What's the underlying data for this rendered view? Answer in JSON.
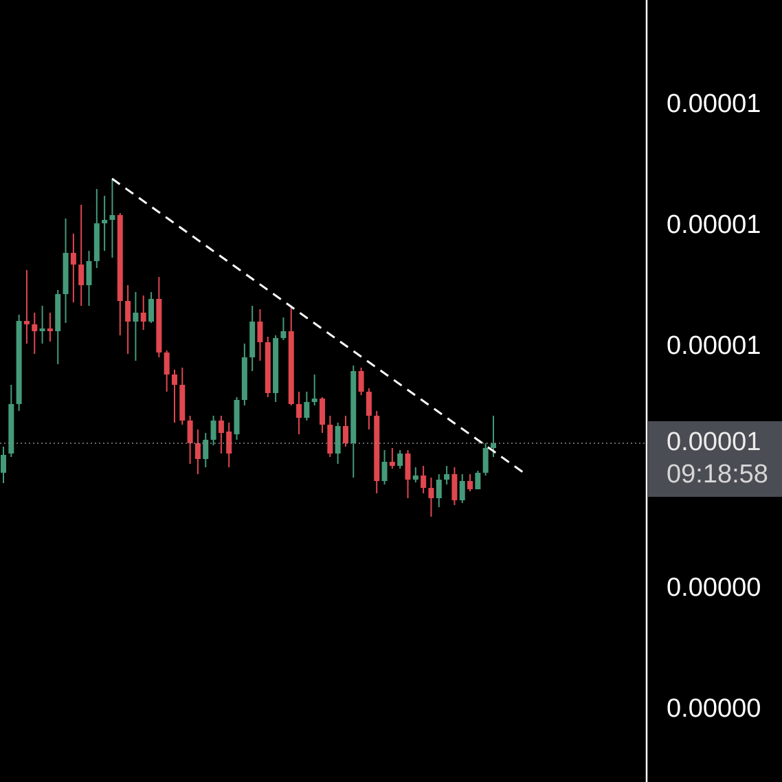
{
  "chart_data": {
    "type": "candlestick",
    "categories": [
      null,
      null,
      null,
      null,
      null,
      null,
      null,
      null,
      null,
      null,
      null,
      null,
      null,
      null,
      null,
      null,
      null,
      null,
      null,
      null,
      null,
      null,
      null,
      null,
      null,
      null,
      null,
      null,
      null,
      null,
      null,
      null,
      null,
      null,
      null,
      null,
      null,
      null,
      null,
      null,
      null,
      null,
      null,
      null,
      null,
      null,
      null,
      null,
      null,
      null,
      null,
      null,
      null,
      null,
      null,
      null,
      null,
      null,
      null,
      null,
      null,
      null,
      null,
      null
    ],
    "open": [
      9.9825e-06,
      1.00525e-05,
      1.02325e-05,
      1.0535e-05,
      1.05225e-05,
      1.04975e-05,
      1.05075e-05,
      1.04975e-05,
      1.06325e-05,
      1.07825e-05,
      1.074e-05,
      1.0665e-05,
      1.07525e-05,
      1.089e-05,
      1.09025e-05,
      1.092e-05,
      1.06075e-05,
      1.05325e-05,
      1.0565e-05,
      1.05325e-05,
      1.0615e-05,
      1.042e-05,
      1.034e-05,
      1.03025e-05,
      1.01725e-05,
      1.009e-05,
      1.00325e-05,
      1.01025e-05,
      1.01725e-05,
      1.01325e-05,
      1.01225e-05,
      1.02475e-05,
      1.04025e-05,
      1.05325e-05,
      1.04575e-05,
      1.02725e-05,
      1.04725e-05,
      1.04975e-05,
      1.02325e-05,
      1.01825e-05,
      1.024e-05,
      1.02525e-05,
      1.01575e-05,
      1.00525e-05,
      1.01525e-05,
      1.009e-05,
      1.03525e-05,
      1.02775e-05,
      1.019e-05,
      9.9525e-06,
      1.00225e-05,
      1.00075e-05,
      1.00525e-05,
      9.9575e-06,
      9.9725e-06,
      9.9275e-06,
      9.89e-06,
      9.9575e-06,
      9.9775e-06,
      9.8825e-06,
      9.9525e-06,
      9.9225e-06,
      9.9825e-06,
      1.00725e-05
    ],
    "high": [
      1.00775e-05,
      1.03025e-05,
      1.05575e-05,
      1.072e-05,
      1.0565e-05,
      1.059e-05,
      1.0565e-05,
      1.06475e-05,
      1.09075e-05,
      1.08525e-05,
      1.09575e-05,
      1.079e-05,
      1.1015e-05,
      1.099e-05,
      1.10475e-05,
      1.09275e-05,
      1.0665e-05,
      1.064e-05,
      1.06275e-05,
      1.064e-05,
      1.0695e-05,
      1.04275e-05,
      1.03575e-05,
      1.0365e-05,
      1.019e-05,
      1.014e-05,
      1.01275e-05,
      1.019e-05,
      1.019e-05,
      1.0165e-05,
      1.02575e-05,
      1.04525e-05,
      1.059e-05,
      1.05775e-05,
      1.04775e-05,
      1.04825e-05,
      1.05475e-05,
      1.05825e-05,
      1.02775e-05,
      1.02775e-05,
      1.034e-05,
      1.02575e-05,
      1.019e-05,
      1.0165e-05,
      1.019e-05,
      1.03725e-05,
      1.0365e-05,
      1.029e-05,
      1.02075e-05,
      1.0065e-05,
      1.00725e-05,
      1.0065e-05,
      1.0065e-05,
      1.00025e-05,
      1.00075e-05,
      9.965e-06,
      9.9775e-06,
      1.00075e-05,
      1.00025e-05,
      9.9775e-06,
      9.9775e-06,
      9.99e-06,
      1.009e-05,
      1.019e-05
    ],
    "low": [
      9.945e-06,
      1.004e-05,
      1.02075e-05,
      1.04525e-05,
      1.0415e-05,
      1.04525e-05,
      1.046e-05,
      1.03775e-05,
      1.05275e-05,
      1.06025e-05,
      1.059e-05,
      1.059e-05,
      1.07275e-05,
      1.079e-05,
      1.0765e-05,
      1.04825e-05,
      1.0415e-05,
      1.039e-05,
      1.05025e-05,
      1.05275e-05,
      1.04025e-05,
      1.02775e-05,
      1.0165e-05,
      1.01575e-05,
      1.0015e-05,
      9.9775e-06,
      1.00025e-05,
      1.00825e-05,
      1.00525e-05,
      1.00025e-05,
      1.01025e-05,
      1.02275e-05,
      1.03525e-05,
      1.039e-05,
      1.02575e-05,
      1.024e-05,
      1.0465e-05,
      1.02275e-05,
      1.01225e-05,
      1.01725e-05,
      1.02275e-05,
      1.01275e-05,
      1.004e-05,
      1.0015e-05,
      1.00775e-05,
      9.965e-06,
      1.0265e-05,
      1.014e-05,
      9.9075e-06,
      9.94e-06,
      9.9975e-06,
      9.9975e-06,
      9.89e-06,
      9.9475e-06,
      9.9075e-06,
      9.8225e-06,
      9.8575e-06,
      9.94e-06,
      9.865e-06,
      9.8725e-06,
      9.915e-06,
      9.9225e-06,
      9.9725e-06,
      1.004e-05
    ],
    "close": [
      1.00475e-05,
      1.02325e-05,
      1.0535e-05,
      1.05225e-05,
      1.04975e-05,
      1.05075e-05,
      1.04975e-05,
      1.06325e-05,
      1.07825e-05,
      1.074e-05,
      1.0665e-05,
      1.07525e-05,
      1.089e-05,
      1.09025e-05,
      1.092e-05,
      1.06075e-05,
      1.05325e-05,
      1.0565e-05,
      1.05325e-05,
      1.0615e-05,
      1.042e-05,
      1.034e-05,
      1.03025e-05,
      1.01725e-05,
      1.009e-05,
      1.00325e-05,
      1.01025e-05,
      1.01725e-05,
      1.01275e-05,
      1.00525e-05,
      1.02475e-05,
      1.04025e-05,
      1.05325e-05,
      1.04575e-05,
      1.02725e-05,
      1.04725e-05,
      1.04975e-05,
      1.02325e-05,
      1.01825e-05,
      1.024e-05,
      1.02525e-05,
      1.01575e-05,
      1.00525e-05,
      1.01525e-05,
      1.009e-05,
      1.03525e-05,
      1.02775e-05,
      1.019e-05,
      9.9525e-06,
      1.00225e-05,
      1.00075e-05,
      1.00525e-05,
      9.9575e-06,
      9.9725e-06,
      9.9275e-06,
      9.89e-06,
      9.9575e-06,
      9.9775e-06,
      9.8825e-06,
      9.9525e-06,
      9.9225e-06,
      9.9825e-06,
      1.00725e-05,
      1.009e-05
    ],
    "up_color": "#459a7a",
    "down_color": "#e0474f",
    "ylim": [
      8.8575e-06,
      1.17025e-05
    ],
    "yticks": [
      {
        "value": 1.132e-05,
        "label": "0.00001"
      },
      {
        "value": 1.088e-05,
        "label": "0.00001"
      },
      {
        "value": 1.044e-05,
        "label": "0.00001"
      },
      {
        "value": 9.56e-06,
        "label": "0.00000"
      },
      {
        "value": 9.12e-06,
        "label": "0.00000"
      }
    ],
    "last_price": {
      "value": 1.009e-05,
      "label": "0.00001"
    },
    "countdown": "09:18:58",
    "grid": false
  }
}
